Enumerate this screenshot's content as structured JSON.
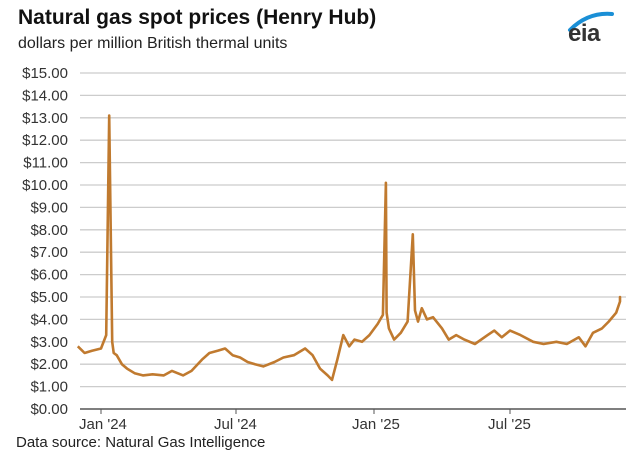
{
  "header": {
    "title": "Natural gas spot prices (Henry Hub)",
    "subtitle": "dollars per million British thermal units"
  },
  "logo": {
    "text": "eia",
    "arc_color": "#1a8fd6"
  },
  "footer": {
    "source": "Data source: Natural Gas Intelligence"
  },
  "colors": {
    "line": "#c07a2f",
    "grid": "#cccccc",
    "axis": "#555555"
  },
  "chart_data": {
    "type": "line",
    "title": "Natural gas spot prices (Henry Hub)",
    "subtitle": "dollars per million British thermal units",
    "xlabel": "",
    "ylabel": "dollars per million British thermal units",
    "ylim": [
      0,
      15
    ],
    "yticks": [
      "$0.00",
      "$1.00",
      "$2.00",
      "$3.00",
      "$4.00",
      "$5.00",
      "$6.00",
      "$7.00",
      "$8.00",
      "$9.00",
      "$10.00",
      "$11.00",
      "$12.00",
      "$13.00",
      "$14.00",
      "$15.00"
    ],
    "xticks": [
      "Jan '24",
      "Jul '24",
      "Jan '25",
      "Jul '25"
    ],
    "grid": true,
    "legend": null,
    "series": [
      {
        "name": "Henry Hub spot price",
        "x": [
          "2023-12-01",
          "2023-12-10",
          "2023-12-20",
          "2024-01-01",
          "2024-01-08",
          "2024-01-12",
          "2024-01-16",
          "2024-01-18",
          "2024-01-22",
          "2024-01-29",
          "2024-02-05",
          "2024-02-15",
          "2024-02-26",
          "2024-03-10",
          "2024-03-25",
          "2024-04-05",
          "2024-04-20",
          "2024-05-01",
          "2024-05-15",
          "2024-05-25",
          "2024-06-05",
          "2024-06-15",
          "2024-06-25",
          "2024-07-05",
          "2024-07-15",
          "2024-07-25",
          "2024-08-05",
          "2024-08-20",
          "2024-09-01",
          "2024-09-15",
          "2024-09-30",
          "2024-10-10",
          "2024-10-20",
          "2024-10-30",
          "2024-11-05",
          "2024-11-12",
          "2024-11-20",
          "2024-11-28",
          "2024-12-05",
          "2024-12-15",
          "2024-12-25",
          "2025-01-05",
          "2025-01-12",
          "2025-01-16",
          "2025-01-17",
          "2025-01-20",
          "2025-01-27",
          "2025-02-05",
          "2025-02-14",
          "2025-02-21",
          "2025-02-24",
          "2025-02-28",
          "2025-03-05",
          "2025-03-12",
          "2025-03-20",
          "2025-04-01",
          "2025-04-10",
          "2025-04-20",
          "2025-05-01",
          "2025-05-15",
          "2025-06-01",
          "2025-06-10",
          "2025-06-20",
          "2025-07-01",
          "2025-07-15",
          "2025-08-01",
          "2025-08-15",
          "2025-09-01",
          "2025-09-15",
          "2025-10-01",
          "2025-10-10",
          "2025-10-20",
          "2025-11-01",
          "2025-11-10",
          "2025-11-20",
          "2025-11-28",
          "2025-12-03",
          "2025-12-08"
        ],
        "values": [
          2.8,
          2.5,
          2.6,
          2.7,
          3.3,
          13.1,
          3.0,
          2.5,
          2.4,
          2.0,
          1.8,
          1.6,
          1.5,
          1.55,
          1.5,
          1.7,
          1.5,
          1.7,
          2.2,
          2.5,
          2.6,
          2.7,
          2.4,
          2.3,
          2.1,
          2.0,
          1.9,
          2.1,
          2.3,
          2.4,
          2.7,
          2.4,
          1.8,
          1.5,
          1.3,
          2.2,
          3.3,
          2.8,
          3.1,
          3.0,
          3.3,
          3.8,
          4.2,
          10.1,
          4.3,
          3.6,
          3.1,
          3.4,
          3.9,
          7.8,
          4.4,
          3.9,
          4.5,
          4.0,
          4.1,
          3.6,
          3.1,
          3.3,
          3.1,
          2.9,
          3.3,
          3.5,
          3.2,
          3.5,
          3.3,
          3.0,
          2.9,
          3.0,
          2.9,
          3.2,
          2.8,
          3.4,
          3.6,
          3.9,
          4.3,
          4.8,
          5.0,
          4.9
        ]
      }
    ]
  }
}
